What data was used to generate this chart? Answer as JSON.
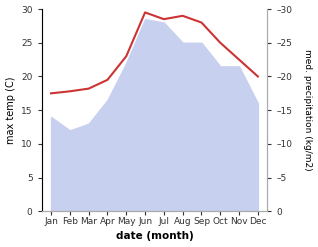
{
  "months": [
    "Jan",
    "Feb",
    "Mar",
    "Apr",
    "May",
    "Jun",
    "Jul",
    "Aug",
    "Sep",
    "Oct",
    "Nov",
    "Dec"
  ],
  "month_positions": [
    1,
    2,
    3,
    4,
    5,
    6,
    7,
    8,
    9,
    10,
    11,
    12
  ],
  "max_temp": [
    14.0,
    12.0,
    13.0,
    16.5,
    22.0,
    28.5,
    28.0,
    25.0,
    25.0,
    21.5,
    21.5,
    16.0
  ],
  "precipitation": [
    17.5,
    17.8,
    18.2,
    19.5,
    23.0,
    29.5,
    28.5,
    29.0,
    28.0,
    25.0,
    22.5,
    20.0
  ],
  "temp_fill_color": "#c8d0f0",
  "precip_line_color": "#cc3333",
  "ylim": [
    0,
    30
  ],
  "yticks": [
    0,
    5,
    10,
    15,
    20,
    25,
    30
  ],
  "xlabel": "date (month)",
  "ylabel_left": "max temp (C)",
  "ylabel_right": "med. precipitation (kg/m2)",
  "background_color": "#ffffff",
  "linewidth": 1.5
}
